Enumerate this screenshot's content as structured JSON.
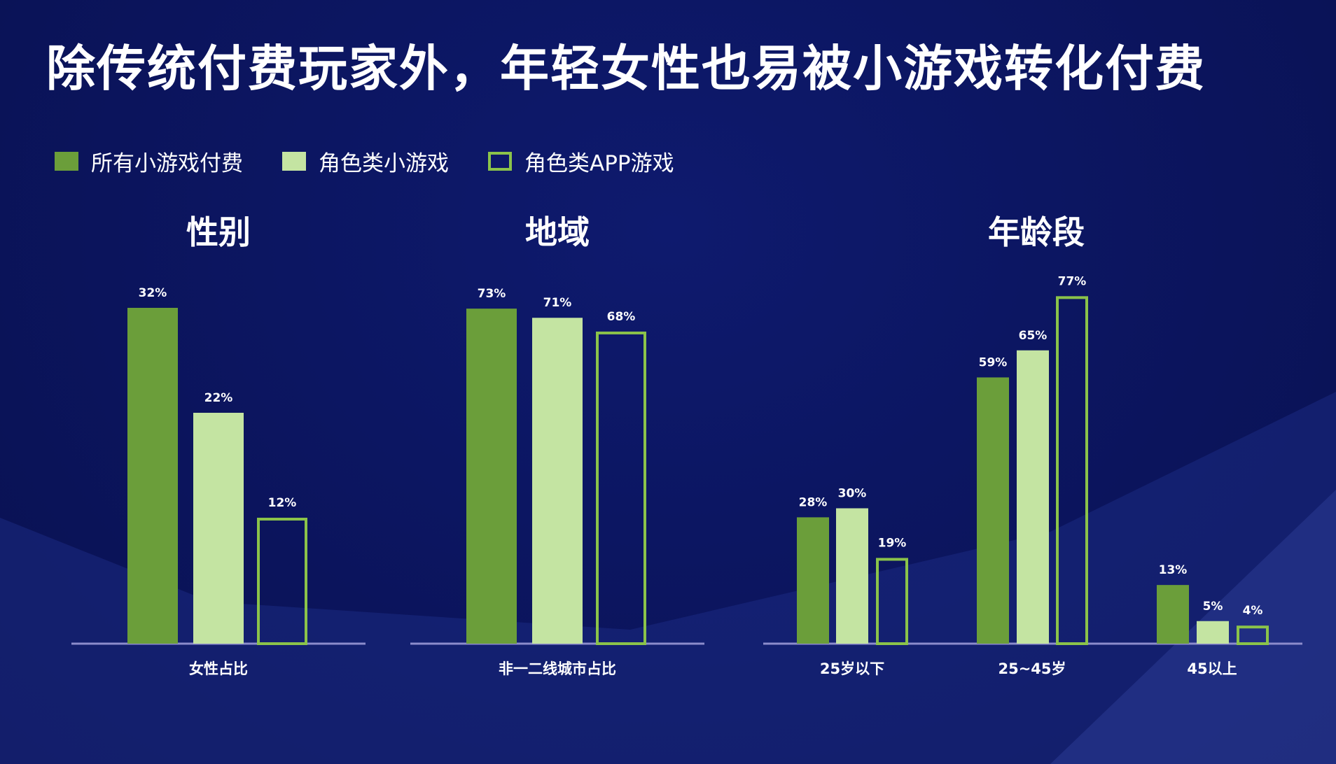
{
  "title": "除传统付费玩家外，年轻女性也易被小游戏转化付费",
  "colors": {
    "series1": "#6b9e3a",
    "series2": "#c4e4a2",
    "series3_outline": "#8bc34a",
    "background": "#0c1560",
    "axis": "#8c8ccc"
  },
  "legend": [
    {
      "label": "所有小游戏付费",
      "style": "solid-dark"
    },
    {
      "label": "角色类小游戏",
      "style": "solid-light"
    },
    {
      "label": "角色类APP游戏",
      "style": "outline"
    }
  ],
  "chart_data": [
    {
      "type": "bar",
      "title": "性别",
      "categories": [
        "女性占比"
      ],
      "series": [
        {
          "name": "所有小游戏付费",
          "values": [
            32
          ]
        },
        {
          "name": "角色类小游戏",
          "values": [
            22
          ]
        },
        {
          "name": "角色类APP游戏",
          "values": [
            12
          ]
        }
      ],
      "data_labels": [
        [
          "32%",
          "22%",
          "12%"
        ]
      ],
      "ylim": [
        0,
        35
      ]
    },
    {
      "type": "bar",
      "title": "地域",
      "categories": [
        "非一二线城市占比"
      ],
      "series": [
        {
          "name": "所有小游戏付费",
          "values": [
            73
          ]
        },
        {
          "name": "角色类小游戏",
          "values": [
            71
          ]
        },
        {
          "name": "角色类APP游戏",
          "values": [
            68
          ]
        }
      ],
      "data_labels": [
        [
          "73%",
          "71%",
          "68%"
        ]
      ]
    },
    {
      "type": "bar",
      "title": "年龄段",
      "categories": [
        "25岁以下",
        "25~45岁",
        "45以上"
      ],
      "series": [
        {
          "name": "所有小游戏付费",
          "values": [
            28,
            59,
            13
          ]
        },
        {
          "name": "角色类小游戏",
          "values": [
            30,
            65,
            5
          ]
        },
        {
          "name": "角色类APP游戏",
          "values": [
            19,
            77,
            4
          ]
        }
      ],
      "data_labels": [
        [
          "28%",
          "30%",
          "19%"
        ],
        [
          "59%",
          "65%",
          "77%"
        ],
        [
          "13%",
          "5%",
          "4%"
        ]
      ],
      "ylim": [
        0,
        80
      ]
    }
  ]
}
